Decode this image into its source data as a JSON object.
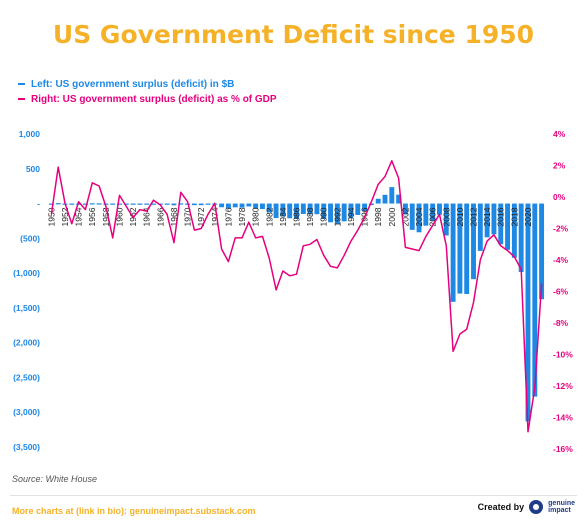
{
  "colors": {
    "title": "#f5b229",
    "bar": "#1e88e5",
    "line": "#e6007e",
    "left_axis": "#1e88e5",
    "right_axis": "#e6007e",
    "footer": "#f5b229"
  },
  "header": {
    "title": "US Government Deficit since 1950"
  },
  "legend": {
    "left": "Left: US government surplus (deficit) in $B",
    "right": "Right: US government surplus (deficit) as % of GDP"
  },
  "footer": {
    "source": "Source: White House",
    "more": "More charts at (link in bio): genuineimpact.substack.com",
    "created_by": "Created by",
    "brand_line1": "genuine",
    "brand_line2": "impact"
  },
  "chart_data": {
    "type": "bar",
    "combo": "bar + line (dual axis)",
    "x": [
      1950,
      1951,
      1952,
      1953,
      1954,
      1955,
      1956,
      1957,
      1958,
      1959,
      1960,
      1961,
      1962,
      1963,
      1964,
      1965,
      1966,
      1967,
      1968,
      1969,
      1970,
      1971,
      1972,
      1973,
      1974,
      1975,
      1976,
      1977,
      1978,
      1979,
      1980,
      1981,
      1982,
      1983,
      1984,
      1985,
      1986,
      1987,
      1988,
      1989,
      1990,
      1991,
      1992,
      1993,
      1994,
      1995,
      1996,
      1997,
      1998,
      1999,
      2000,
      2001,
      2002,
      2003,
      2004,
      2005,
      2006,
      2007,
      2008,
      2009,
      2010,
      2011,
      2012,
      2013,
      2014,
      2015,
      2016,
      2017,
      2018,
      2019,
      2020,
      2021,
      2022
    ],
    "x_tick_labels": [
      "1950",
      "1952",
      "1954",
      "1956",
      "1958",
      "1960",
      "1962",
      "1964",
      "1966",
      "1968",
      "1970",
      "1972",
      "1974",
      "1976",
      "1978",
      "1980",
      "1982",
      "1984",
      "1986",
      "1988",
      "1990",
      "1992",
      "1994",
      "1996",
      "1998",
      "2000",
      "2002",
      "2004",
      "2006",
      "2008",
      "2010",
      "2012",
      "2014",
      "2016",
      "2018",
      "2020"
    ],
    "series": [
      {
        "name": "Left: US government surplus (deficit) in $B",
        "type": "bar",
        "axis": "left",
        "values": [
          -3,
          6,
          -2,
          -7,
          -1,
          -3,
          4,
          3,
          -3,
          -13,
          0,
          -3,
          -7,
          -5,
          -6,
          -1,
          -4,
          -9,
          -25,
          3,
          -3,
          -23,
          -23,
          -15,
          -6,
          -53,
          -74,
          -54,
          -59,
          -41,
          -74,
          -79,
          -128,
          -208,
          -185,
          -212,
          -221,
          -150,
          -155,
          -153,
          -221,
          -269,
          -290,
          -255,
          -203,
          -164,
          -107,
          -22,
          69,
          126,
          236,
          128,
          -158,
          -378,
          -413,
          -318,
          -248,
          -161,
          -459,
          -1413,
          -1294,
          -1300,
          -1087,
          -680,
          -485,
          -442,
          -585,
          -665,
          -779,
          -984,
          -3132,
          -2775,
          -1375
        ]
      },
      {
        "name": "Right: US government surplus (deficit) as % of GDP",
        "type": "line",
        "axis": "right",
        "values": [
          -1.1,
          1.9,
          -0.4,
          -1.7,
          -0.3,
          -0.8,
          0.9,
          0.7,
          -0.6,
          -2.6,
          0.1,
          -0.6,
          -1.3,
          -0.8,
          -0.9,
          -0.2,
          -0.5,
          -1.1,
          -2.9,
          0.3,
          -0.3,
          -2.1,
          -2.0,
          -1.1,
          -0.4,
          -3.3,
          -4.1,
          -2.6,
          -2.6,
          -1.6,
          -2.6,
          -2.5,
          -3.9,
          -5.9,
          -4.7,
          -5.0,
          -4.9,
          -3.1,
          -3.0,
          -2.7,
          -3.7,
          -4.4,
          -4.5,
          -3.7,
          -2.8,
          -2.1,
          -1.3,
          -0.3,
          0.8,
          1.3,
          2.3,
          1.2,
          -3.2,
          -3.3,
          -3.4,
          -2.5,
          -1.8,
          -1.1,
          -3.1,
          -9.8,
          -8.7,
          -8.4,
          -6.7,
          -4.0,
          -2.8,
          -2.4,
          -3.1,
          -3.4,
          -3.8,
          -4.6,
          -14.9,
          -12.1,
          -5.5
        ]
      }
    ],
    "left_axis": {
      "min": -3500,
      "max": 1000,
      "ticks": [
        "1,000",
        "500",
        "-",
        "(500)",
        "(1,000)",
        "(1,500)",
        "(2,000)",
        "(2,500)",
        "(3,000)",
        "(3,500)"
      ]
    },
    "right_axis": {
      "min": -16,
      "max": 4,
      "ticks": [
        "4%",
        "2%",
        "0%",
        "-2%",
        "-4%",
        "-6%",
        "-8%",
        "-10%",
        "-12%",
        "-14%",
        "-16%"
      ]
    },
    "grid": false,
    "legend_position": "top-left"
  }
}
